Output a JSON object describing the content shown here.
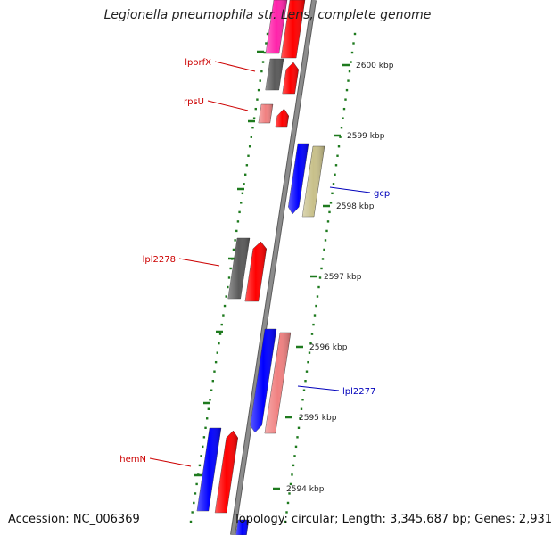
{
  "title": "Legionella pneumophila str. Lens, complete genome",
  "footer": {
    "accession": "Accession: NC_006369",
    "topology": "Topology: circular; Length: 3,345,687 bp; Genes: 2,931"
  },
  "colors": {
    "backbone": "#8c8c8c",
    "tick": "#1e7a1e",
    "forward_label": "#cc0000",
    "reverse_label": "#0000bb",
    "gene_red": "#ff0000",
    "gene_blue": "#0000ff",
    "gene_gray": "#5a5a5a",
    "gene_pink": "#f08080",
    "gene_magenta": "#ff22aa",
    "gene_khaki": "#c8c08a"
  },
  "scale_labels": [
    "2600 kbp",
    "2599 kbp",
    "2598 kbp",
    "2597 kbp",
    "2596 kbp",
    "2595 kbp",
    "2594 kbp"
  ],
  "gene_labels": [
    {
      "text": "lporfX",
      "strand": "forward"
    },
    {
      "text": "rpsU",
      "strand": "forward"
    },
    {
      "text": "gcp",
      "strand": "reverse"
    },
    {
      "text": "lpl2278",
      "strand": "forward"
    },
    {
      "text": "lpl2277",
      "strand": "reverse"
    },
    {
      "text": "hemN",
      "strand": "forward"
    }
  ]
}
